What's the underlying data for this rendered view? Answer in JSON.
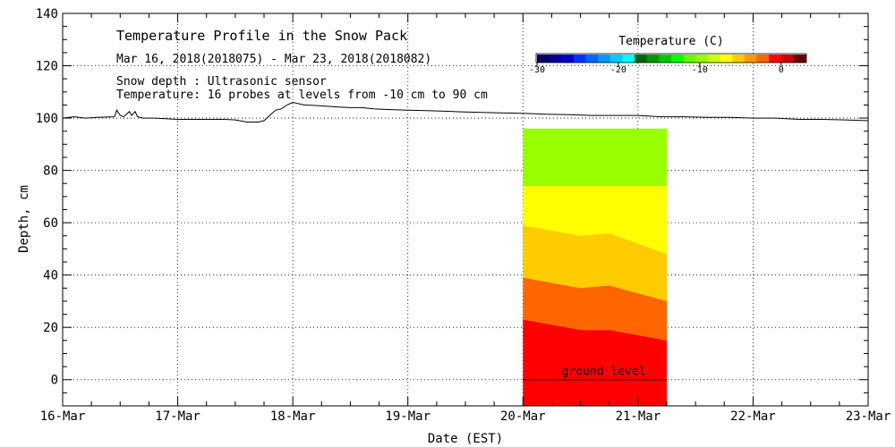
{
  "chart_data": {
    "type": "area",
    "title": "Temperature Profile in the Snow Pack",
    "subtitle": "Mar 16, 2018(2018075) - Mar 23, 2018(2018082)",
    "notes": [
      "Snow depth : Ultrasonic sensor",
      "Temperature: 16 probes at levels from -10 cm to 90 cm"
    ],
    "xlabel": "Date (EST)",
    "ylabel": "Depth, cm",
    "xlim": [
      0,
      7
    ],
    "ylim": [
      -10,
      140
    ],
    "x_ticks": [
      {
        "day": 0,
        "label": "16-Mar"
      },
      {
        "day": 1,
        "label": "17-Mar"
      },
      {
        "day": 2,
        "label": "18-Mar"
      },
      {
        "day": 3,
        "label": "19-Mar"
      },
      {
        "day": 4,
        "label": "20-Mar"
      },
      {
        "day": 5,
        "label": "21-Mar"
      },
      {
        "day": 6,
        "label": "22-Mar"
      },
      {
        "day": 7,
        "label": "23-Mar"
      }
    ],
    "y_ticks": [
      0,
      20,
      40,
      60,
      80,
      100,
      120,
      140
    ],
    "grid": true,
    "snow_depth_series": {
      "name": "Snow depth",
      "x": [
        0,
        0.1,
        0.2,
        0.3,
        0.45,
        0.47,
        0.5,
        0.53,
        0.58,
        0.6,
        0.63,
        0.65,
        0.7,
        0.8,
        1.0,
        1.2,
        1.4,
        1.5,
        1.6,
        1.65,
        1.7,
        1.75,
        1.8,
        1.85,
        1.9,
        1.95,
        2.0,
        2.1,
        2.2,
        2.3,
        2.4,
        2.5,
        2.6,
        2.7,
        2.8,
        3.0,
        3.2,
        3.4,
        3.6,
        3.8,
        4.0,
        4.2,
        4.4,
        4.6,
        4.8,
        5.0,
        5.2,
        5.4,
        5.6,
        5.8,
        6.0,
        6.2,
        6.4,
        6.6,
        6.8,
        7.0
      ],
      "y": [
        100,
        100.5,
        100,
        100.3,
        100.5,
        103,
        101,
        100.5,
        102.5,
        101,
        102.5,
        100.5,
        100,
        100,
        99.5,
        99.5,
        99.5,
        99.3,
        98.5,
        98.5,
        98.5,
        99,
        101,
        103,
        103.5,
        105,
        106,
        105,
        104.8,
        104.5,
        104.2,
        104,
        104,
        103.5,
        103.3,
        103,
        102.8,
        102.5,
        102.2,
        102,
        101.8,
        101.5,
        101.3,
        101,
        101,
        101,
        100.5,
        100.5,
        100.3,
        100.3,
        100,
        100,
        99.5,
        99.5,
        99.3,
        99
      ]
    },
    "ground_level": {
      "depth": 0,
      "label": "ground level",
      "x_range": [
        4.0,
        5.25
      ]
    },
    "temperature_bands": {
      "x_range": [
        4.0,
        5.25
      ],
      "x": [
        4.0,
        4.25,
        4.5,
        4.75,
        5.0,
        5.25
      ],
      "top": 96,
      "bottom": -10,
      "bands": [
        {
          "color": "#99ff00",
          "upper": [
            96,
            96,
            96,
            96,
            96,
            96
          ],
          "lower": [
            74,
            74,
            74,
            74,
            74,
            74
          ]
        },
        {
          "color": "#ffff00",
          "upper": [
            74,
            74,
            74,
            74,
            74,
            74
          ],
          "lower": [
            59,
            57,
            55,
            56,
            52,
            48
          ]
        },
        {
          "color": "#ffcc00",
          "upper": [
            59,
            57,
            55,
            56,
            52,
            48
          ],
          "lower": [
            39,
            37,
            35,
            36,
            33,
            30
          ]
        },
        {
          "color": "#ff6600",
          "upper": [
            39,
            37,
            35,
            36,
            33,
            30
          ],
          "lower": [
            23,
            21,
            19,
            19,
            17,
            15
          ]
        },
        {
          "color": "#ff0000",
          "upper": [
            23,
            21,
            19,
            19,
            17,
            15
          ],
          "lower": [
            -10,
            -10,
            -10,
            -10,
            -10,
            -10
          ]
        }
      ]
    },
    "colorbar": {
      "title": "Temperature (C)",
      "range": [
        -30,
        3
      ],
      "ticks": [
        {
          "value": -30,
          "label": "-30"
        },
        {
          "value": -20,
          "label": "-20"
        },
        {
          "value": -10,
          "label": "-10"
        },
        {
          "value": 0,
          "label": "0"
        }
      ],
      "colors": [
        "#000066",
        "#000099",
        "#0000cc",
        "#0033ff",
        "#0066ff",
        "#0099ff",
        "#00ccff",
        "#00ffff",
        "#006600",
        "#009900",
        "#00cc00",
        "#00ff00",
        "#66ff00",
        "#99ff00",
        "#ccff00",
        "#ffff00",
        "#ffcc00",
        "#ff9900",
        "#ff6600",
        "#ff0000",
        "#cc0000",
        "#660000"
      ]
    }
  }
}
